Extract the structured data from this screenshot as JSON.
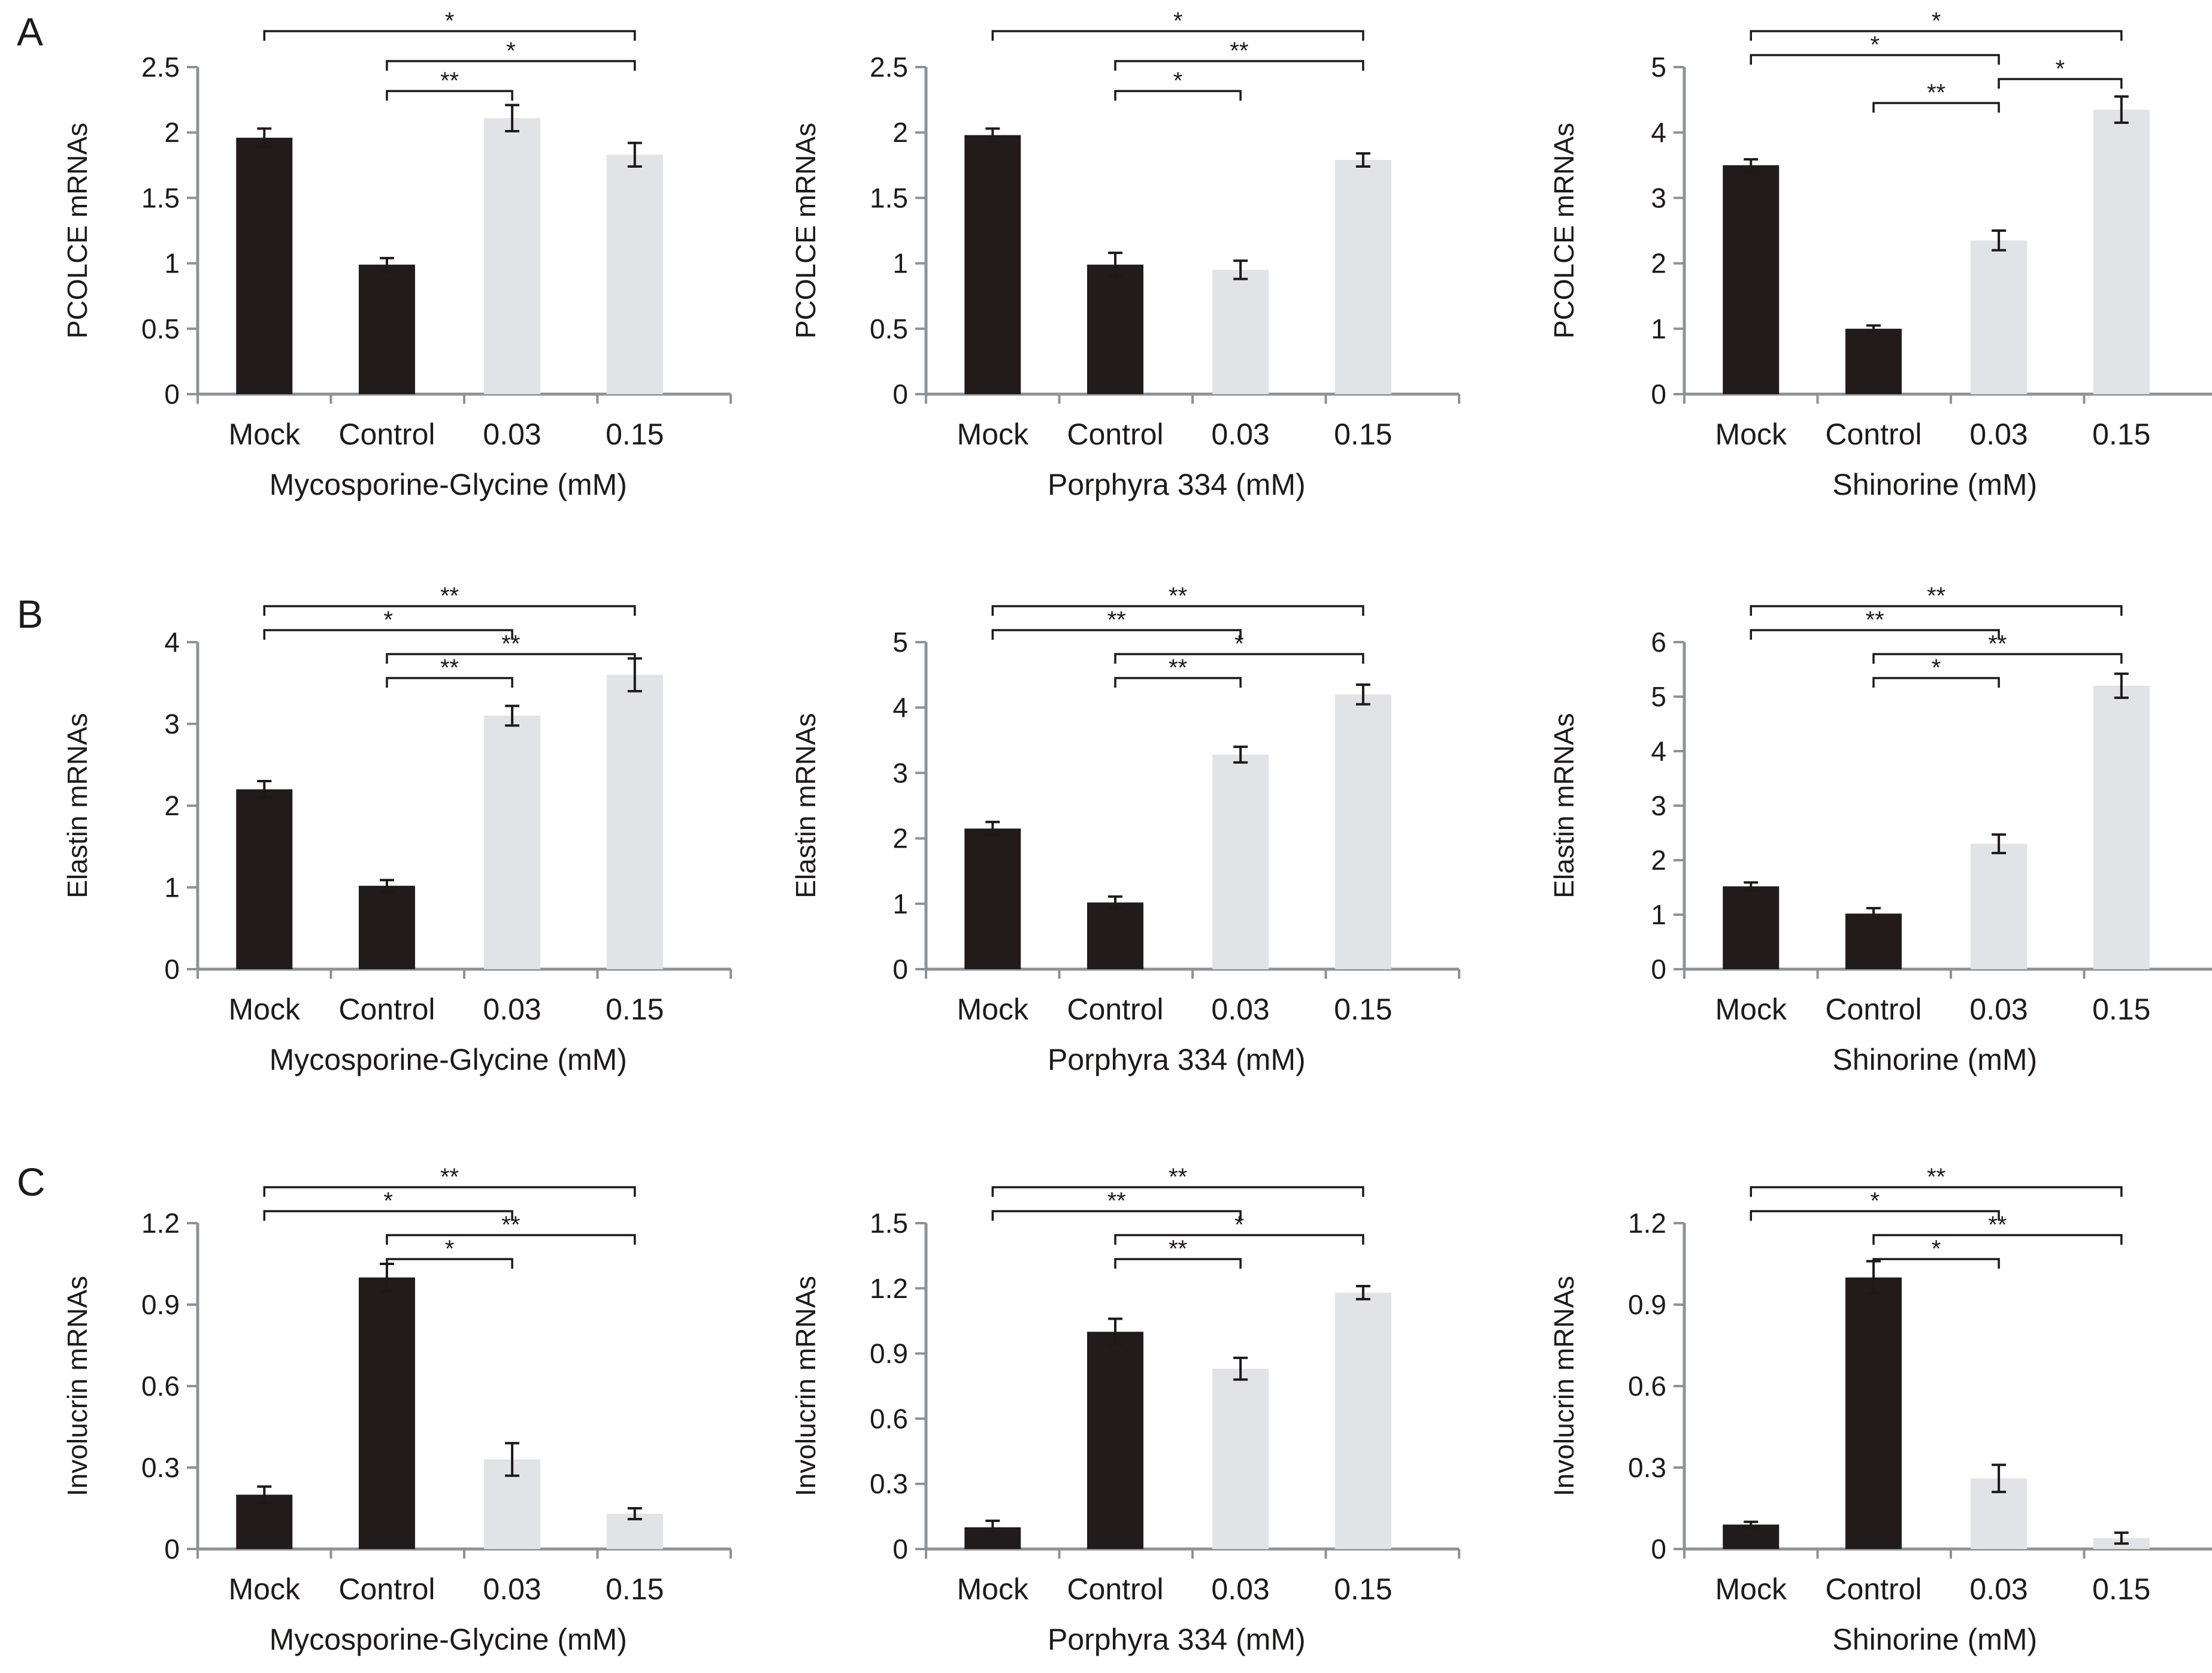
{
  "colors": {
    "dark": "#211b1b",
    "light": "#e1e3e7",
    "axis": "#8e9196",
    "ink": "#1e1a1a"
  },
  "panels": [
    {
      "letter": "A",
      "row": 0
    },
    {
      "letter": "B",
      "row": 1
    },
    {
      "letter": "C",
      "row": 2
    }
  ],
  "chart_data": [
    {
      "type": "bar",
      "row": 0,
      "col": 0,
      "categories": [
        "Mock",
        "Control",
        "0.03",
        "0.15"
      ],
      "values": [
        1.96,
        0.99,
        2.11,
        1.83
      ],
      "errors": [
        0.07,
        0.05,
        0.1,
        0.09
      ],
      "xlabel": "Mycosporine-Glycine (mM)",
      "ylabel": "PCOLCE  mRNAs",
      "ylim": [
        0,
        2.5
      ],
      "yticks": [
        "0",
        "0.5",
        "1",
        "1.5",
        "2",
        "2.5"
      ],
      "significance": [
        {
          "from": 0,
          "to": 3,
          "label": "*"
        },
        {
          "from": 1,
          "to": 3,
          "label": "*"
        },
        {
          "from": 1,
          "to": 2,
          "label": "**"
        }
      ]
    },
    {
      "type": "bar",
      "row": 0,
      "col": 1,
      "categories": [
        "Mock",
        "Control",
        "0.03",
        "0.15"
      ],
      "values": [
        1.98,
        0.99,
        0.95,
        1.79
      ],
      "errors": [
        0.05,
        0.09,
        0.07,
        0.05
      ],
      "xlabel": "Porphyra 334 (mM)",
      "ylabel": "PCOLCE mRNAs",
      "ylim": [
        0,
        2.5
      ],
      "yticks": [
        "0",
        "0.5",
        "1",
        "1.5",
        "2",
        "2.5"
      ],
      "significance": [
        {
          "from": 0,
          "to": 3,
          "label": "*"
        },
        {
          "from": 1,
          "to": 3,
          "label": "**"
        },
        {
          "from": 1,
          "to": 2,
          "label": "*"
        }
      ]
    },
    {
      "type": "bar",
      "row": 0,
      "col": 2,
      "categories": [
        "Mock",
        "Control",
        "0.03",
        "0.15"
      ],
      "values": [
        3.5,
        1.0,
        2.35,
        4.35
      ],
      "errors": [
        0.09,
        0.05,
        0.15,
        0.2
      ],
      "xlabel": "Shinorine (mM)",
      "ylabel": "PCOLCE mRNAs",
      "ylim": [
        0,
        5
      ],
      "yticks": [
        "0",
        "1",
        "2",
        "3",
        "4",
        "5"
      ],
      "significance": [
        {
          "from": 0,
          "to": 3,
          "label": "*"
        },
        {
          "from": 0,
          "to": 2,
          "label": "*"
        },
        {
          "from": 2,
          "to": 3,
          "label": "*"
        },
        {
          "from": 1,
          "to": 2,
          "label": "**"
        }
      ]
    },
    {
      "type": "bar",
      "row": 1,
      "col": 0,
      "categories": [
        "Mock",
        "Control",
        "0.03",
        "0.15"
      ],
      "values": [
        2.2,
        1.02,
        3.1,
        3.6
      ],
      "errors": [
        0.1,
        0.07,
        0.12,
        0.2
      ],
      "xlabel": "Mycosporine-Glycine (mM)",
      "ylabel": "Elastin mRNAs",
      "ylim": [
        0,
        4
      ],
      "yticks": [
        "0",
        "1",
        "2",
        "3",
        "4"
      ],
      "significance": [
        {
          "from": 0,
          "to": 3,
          "label": "**"
        },
        {
          "from": 0,
          "to": 2,
          "label": "*"
        },
        {
          "from": 1,
          "to": 3,
          "label": "**"
        },
        {
          "from": 1,
          "to": 2,
          "label": "**"
        }
      ]
    },
    {
      "type": "bar",
      "row": 1,
      "col": 1,
      "categories": [
        "Mock",
        "Control",
        "0.03",
        "0.15"
      ],
      "values": [
        2.15,
        1.02,
        3.28,
        4.2
      ],
      "errors": [
        0.1,
        0.09,
        0.12,
        0.15
      ],
      "xlabel": "Porphyra 334 (mM)",
      "ylabel": "Elastin mRNAs",
      "ylim": [
        0,
        5
      ],
      "yticks": [
        "0",
        "1",
        "2",
        "3",
        "4",
        "5"
      ],
      "significance": [
        {
          "from": 0,
          "to": 3,
          "label": "**"
        },
        {
          "from": 0,
          "to": 2,
          "label": "**"
        },
        {
          "from": 1,
          "to": 3,
          "label": "*"
        },
        {
          "from": 1,
          "to": 2,
          "label": "**"
        }
      ]
    },
    {
      "type": "bar",
      "row": 1,
      "col": 2,
      "categories": [
        "Mock",
        "Control",
        "0.03",
        "0.15"
      ],
      "values": [
        1.52,
        1.02,
        2.3,
        5.2
      ],
      "errors": [
        0.07,
        0.1,
        0.17,
        0.22
      ],
      "xlabel": "Shinorine (mM)",
      "ylabel": "Elastin mRNAs",
      "ylim": [
        0,
        6
      ],
      "yticks": [
        "0",
        "1",
        "2",
        "3",
        "4",
        "5",
        "6"
      ],
      "significance": [
        {
          "from": 0,
          "to": 3,
          "label": "**"
        },
        {
          "from": 0,
          "to": 2,
          "label": "**"
        },
        {
          "from": 1,
          "to": 3,
          "label": "**"
        },
        {
          "from": 1,
          "to": 2,
          "label": "*"
        }
      ]
    },
    {
      "type": "bar",
      "row": 2,
      "col": 0,
      "categories": [
        "Mock",
        "Control",
        "0.03",
        "0.15"
      ],
      "values": [
        0.2,
        1.0,
        0.33,
        0.13
      ],
      "errors": [
        0.03,
        0.05,
        0.06,
        0.02
      ],
      "xlabel": "Mycosporine-Glycine (mM)",
      "ylabel": "Involucrin mRNAs",
      "ylim": [
        0,
        1.2
      ],
      "yticks": [
        "0",
        "0.3",
        "0.6",
        "0.9",
        "1.2"
      ],
      "significance": [
        {
          "from": 0,
          "to": 3,
          "label": "**"
        },
        {
          "from": 0,
          "to": 2,
          "label": "*"
        },
        {
          "from": 1,
          "to": 3,
          "label": "**"
        },
        {
          "from": 1,
          "to": 2,
          "label": "*"
        }
      ]
    },
    {
      "type": "bar",
      "row": 2,
      "col": 1,
      "categories": [
        "Mock",
        "Control",
        "0.03",
        "0.15"
      ],
      "values": [
        0.1,
        1.0,
        0.83,
        1.18
      ],
      "errors": [
        0.03,
        0.06,
        0.05,
        0.03
      ],
      "xlabel": "Porphyra 334 (mM)",
      "ylabel": "Involucrin mRNAs",
      "ylim": [
        0,
        1.5
      ],
      "yticks": [
        "0",
        "0.3",
        "0.6",
        "0.9",
        "1.2",
        "1.5"
      ],
      "significance": [
        {
          "from": 0,
          "to": 3,
          "label": "**"
        },
        {
          "from": 0,
          "to": 2,
          "label": "**"
        },
        {
          "from": 1,
          "to": 3,
          "label": "*"
        },
        {
          "from": 1,
          "to": 2,
          "label": "**"
        }
      ]
    },
    {
      "type": "bar",
      "row": 2,
      "col": 2,
      "categories": [
        "Mock",
        "Control",
        "0.03",
        "0.15"
      ],
      "values": [
        0.09,
        1.0,
        0.26,
        0.04
      ],
      "errors": [
        0.01,
        0.06,
        0.05,
        0.02
      ],
      "xlabel": "Shinorine (mM)",
      "ylabel": "Involucrin mRNAs",
      "ylim": [
        0,
        1.2
      ],
      "yticks": [
        "0",
        "0.3",
        "0.6",
        "0.9",
        "1.2"
      ],
      "significance": [
        {
          "from": 0,
          "to": 3,
          "label": "**"
        },
        {
          "from": 0,
          "to": 2,
          "label": "*"
        },
        {
          "from": 1,
          "to": 3,
          "label": "**"
        },
        {
          "from": 1,
          "to": 2,
          "label": "*"
        }
      ]
    }
  ]
}
